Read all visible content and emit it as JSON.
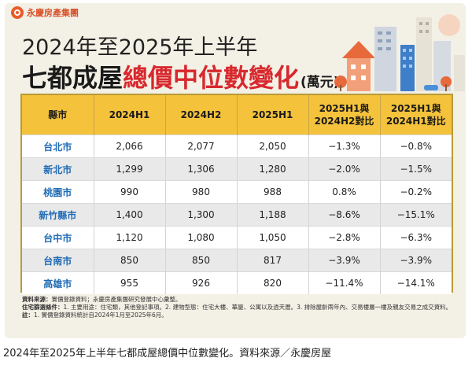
{
  "logo": {
    "text": "永慶房產集團"
  },
  "title": {
    "line1": "2024年至2025年上半年",
    "line2_a": "七都成屋",
    "line2_b": "總價中位數變化",
    "line2_c": "(萬元)"
  },
  "table": {
    "headers": [
      "縣市",
      "2024H1",
      "2024H2",
      "2025H1",
      "2025H1與\n2024H2對比",
      "2025H1與\n2024H1對比"
    ],
    "rows": [
      [
        "台北市",
        "2,066",
        "2,077",
        "2,050",
        "−1.3%",
        "−0.8%"
      ],
      [
        "新北市",
        "1,299",
        "1,306",
        "1,280",
        "−2.0%",
        "−1.5%"
      ],
      [
        "桃園市",
        "990",
        "980",
        "988",
        "0.8%",
        "−0.2%"
      ],
      [
        "新竹縣市",
        "1,400",
        "1,300",
        "1,188",
        "−8.6%",
        "−15.1%"
      ],
      [
        "台中市",
        "1,120",
        "1,080",
        "1,050",
        "−2.8%",
        "−6.3%"
      ],
      [
        "台南市",
        "850",
        "850",
        "817",
        "−3.9%",
        "−3.9%"
      ],
      [
        "高雄市",
        "955",
        "926",
        "820",
        "−11.4%",
        "−14.1%"
      ]
    ]
  },
  "notes": {
    "source_label": "資料來源：",
    "source_text": "實價登錄資料；永慶房產集團研究發展中心彙整。",
    "filter_label": "住宅篩選條件：",
    "filter_text": "1. 主要用途：住宅類，其他登記事項。2. 建物型態：住宅大樓、華廈、公寓以及透天厝。3. 排除屋齡兩年內、交易樓層一樓及親友交易之成交資料。",
    "note_label": "註：",
    "note_text": "1. 實價登錄資料統計自2024年1月至2025年6月。"
  },
  "caption": "2024年至2025年上半年七都成屋總價中位數變化。資料來源／永慶房屋",
  "colors": {
    "header_bg": "#f4c23b",
    "accent_red": "#d8282e",
    "city_blue": "#1f6bb5",
    "logo_orange": "#e85c2a"
  }
}
